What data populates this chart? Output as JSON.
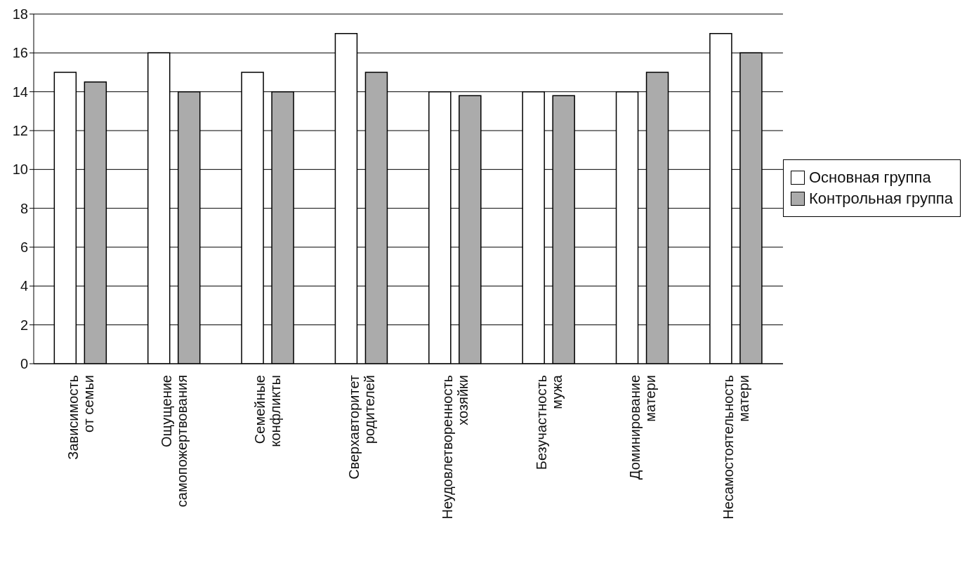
{
  "chart_data": {
    "type": "bar",
    "categories": [
      "Зависимость от семьи",
      "Ощущение самопожертвования",
      "Семейные конфликты",
      "Сверхавторитет родителей",
      "Неудовлетворенность хозяйки",
      "Безучастность мужа",
      "Доминирование матери",
      "Несамостоятельность матери"
    ],
    "series": [
      {
        "name": "Основная группа",
        "color": "#ffffff",
        "values": [
          15,
          16,
          15,
          17,
          14,
          14,
          14,
          17
        ]
      },
      {
        "name": "Контрольная группа",
        "color": "#ababab",
        "values": [
          14.5,
          14,
          14,
          15,
          13.8,
          13.8,
          15,
          16
        ]
      }
    ],
    "ylim": [
      0,
      18
    ],
    "yticks": [
      0,
      2,
      4,
      6,
      8,
      10,
      12,
      14,
      16,
      18
    ],
    "grid": "y",
    "legend": "right"
  }
}
